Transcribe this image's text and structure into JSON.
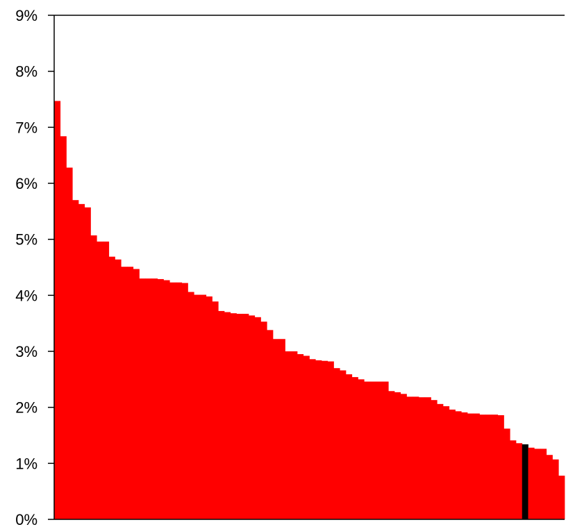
{
  "chart_data": {
    "type": "bar",
    "title": "",
    "xlabel": "",
    "ylabel": "",
    "ylim": [
      0,
      9
    ],
    "yticks": [
      0,
      1,
      2,
      3,
      4,
      5,
      6,
      7,
      8,
      9
    ],
    "ytick_labels": [
      "0%",
      "1%",
      "2%",
      "3%",
      "4%",
      "5%",
      "6%",
      "7%",
      "8%",
      "9%"
    ],
    "grid": false,
    "legend": "none",
    "colors": {
      "bar": "#ff0000",
      "highlight": "#000000",
      "axis": "#000000",
      "background": "#ffffff"
    },
    "highlight_index": 77,
    "values": [
      7.47,
      6.84,
      6.28,
      5.7,
      5.63,
      5.57,
      5.07,
      4.96,
      4.96,
      4.69,
      4.64,
      4.51,
      4.51,
      4.47,
      4.3,
      4.3,
      4.3,
      4.29,
      4.27,
      4.23,
      4.23,
      4.22,
      4.06,
      4.01,
      4.01,
      3.98,
      3.89,
      3.72,
      3.7,
      3.68,
      3.67,
      3.67,
      3.64,
      3.61,
      3.53,
      3.38,
      3.22,
      3.22,
      3.0,
      3.0,
      2.95,
      2.92,
      2.86,
      2.84,
      2.83,
      2.82,
      2.7,
      2.66,
      2.59,
      2.54,
      2.5,
      2.46,
      2.46,
      2.46,
      2.46,
      2.29,
      2.27,
      2.24,
      2.19,
      2.19,
      2.18,
      2.18,
      2.13,
      2.06,
      2.02,
      1.96,
      1.93,
      1.91,
      1.89,
      1.89,
      1.87,
      1.87,
      1.87,
      1.86,
      1.62,
      1.41,
      1.36,
      1.34,
      1.28,
      1.26,
      1.26,
      1.15,
      1.07,
      0.78
    ]
  }
}
